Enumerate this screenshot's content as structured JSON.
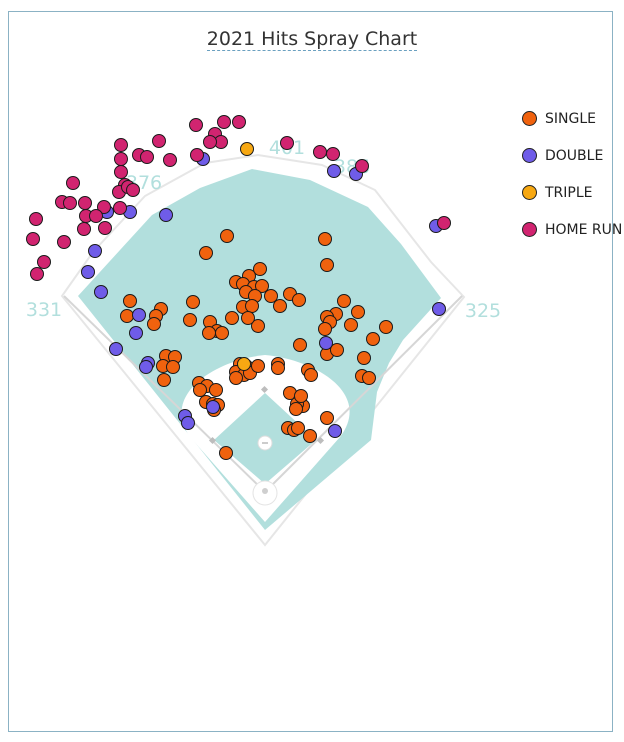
{
  "chart_data": {
    "type": "scatter",
    "title": "2021 Hits Spray Chart",
    "field_distances": {
      "left": "331",
      "left_center": "376",
      "center": "401",
      "right_center": "386",
      "right": "325"
    },
    "legend_placement": "top-right",
    "grid": false,
    "series": [
      {
        "name": "SINGLE",
        "color": "#f0620e",
        "points": [
          [
            227,
            236
          ],
          [
            206,
            253
          ],
          [
            325,
            239
          ],
          [
            327,
            265
          ],
          [
            260,
            269
          ],
          [
            249,
            276
          ],
          [
            236,
            282
          ],
          [
            243,
            284
          ],
          [
            254,
            287
          ],
          [
            262,
            286
          ],
          [
            246,
            292
          ],
          [
            255,
            296
          ],
          [
            271,
            296
          ],
          [
            290,
            294
          ],
          [
            299,
            300
          ],
          [
            280,
            306
          ],
          [
            243,
            307
          ],
          [
            252,
            306
          ],
          [
            193,
            302
          ],
          [
            130,
            301
          ],
          [
            161,
            309
          ],
          [
            156,
            316
          ],
          [
            154,
            324
          ],
          [
            127,
            316
          ],
          [
            190,
            320
          ],
          [
            210,
            322
          ],
          [
            217,
            331
          ],
          [
            222,
            333
          ],
          [
            209,
            333
          ],
          [
            258,
            326
          ],
          [
            232,
            318
          ],
          [
            248,
            318
          ],
          [
            344,
            301
          ],
          [
            358,
            312
          ],
          [
            336,
            314
          ],
          [
            327,
            317
          ],
          [
            330,
            322
          ],
          [
            351,
            325
          ],
          [
            325,
            329
          ],
          [
            386,
            327
          ],
          [
            373,
            339
          ],
          [
            300,
            345
          ],
          [
            327,
            354
          ],
          [
            337,
            350
          ],
          [
            364,
            358
          ],
          [
            362,
            376
          ],
          [
            369,
            378
          ],
          [
            166,
            356
          ],
          [
            175,
            357
          ],
          [
            163,
            366
          ],
          [
            173,
            367
          ],
          [
            164,
            380
          ],
          [
            199,
            383
          ],
          [
            207,
            386
          ],
          [
            200,
            390
          ],
          [
            216,
            390
          ],
          [
            240,
            364
          ],
          [
            246,
            366
          ],
          [
            236,
            372
          ],
          [
            244,
            375
          ],
          [
            250,
            373
          ],
          [
            236,
            378
          ],
          [
            258,
            366
          ],
          [
            278,
            364
          ],
          [
            278,
            368
          ],
          [
            308,
            370
          ],
          [
            311,
            375
          ],
          [
            206,
            402
          ],
          [
            213,
            404
          ],
          [
            218,
            405
          ],
          [
            214,
            410
          ],
          [
            290,
            393
          ],
          [
            300,
            400
          ],
          [
            303,
            406
          ],
          [
            297,
            404
          ],
          [
            296,
            409
          ],
          [
            301,
            396
          ],
          [
            288,
            428
          ],
          [
            294,
            430
          ],
          [
            298,
            428
          ],
          [
            310,
            436
          ],
          [
            327,
            418
          ],
          [
            226,
            453
          ]
        ]
      },
      {
        "name": "DOUBLE",
        "color": "#6f5ce8",
        "points": [
          [
            203,
            159
          ],
          [
            334,
            171
          ],
          [
            356,
            174
          ],
          [
            166,
            215
          ],
          [
            130,
            212
          ],
          [
            107,
            212
          ],
          [
            95,
            251
          ],
          [
            88,
            272
          ],
          [
            101,
            292
          ],
          [
            139,
            315
          ],
          [
            136,
            333
          ],
          [
            148,
            363
          ],
          [
            146,
            367
          ],
          [
            116,
            349
          ],
          [
            185,
            416
          ],
          [
            188,
            423
          ],
          [
            213,
            407
          ],
          [
            335,
            431
          ],
          [
            326,
            343
          ],
          [
            439,
            309
          ],
          [
            436,
            226
          ]
        ]
      },
      {
        "name": "TRIPLE",
        "color": "#f7a812",
        "points": [
          [
            247,
            149
          ],
          [
            244,
            364
          ]
        ]
      },
      {
        "name": "HOME RUN",
        "color": "#d12470",
        "points": [
          [
            224,
            122
          ],
          [
            239,
            122
          ],
          [
            196,
            125
          ],
          [
            159,
            141
          ],
          [
            215,
            134
          ],
          [
            221,
            142
          ],
          [
            210,
            142
          ],
          [
            287,
            143
          ],
          [
            121,
            145
          ],
          [
            139,
            155
          ],
          [
            147,
            157
          ],
          [
            170,
            160
          ],
          [
            197,
            155
          ],
          [
            320,
            152
          ],
          [
            333,
            154
          ],
          [
            362,
            166
          ],
          [
            121,
            159
          ],
          [
            121,
            172
          ],
          [
            125,
            185
          ],
          [
            119,
            192
          ],
          [
            128,
            187
          ],
          [
            133,
            190
          ],
          [
            73,
            183
          ],
          [
            62,
            202
          ],
          [
            70,
            203
          ],
          [
            85,
            203
          ],
          [
            104,
            207
          ],
          [
            120,
            208
          ],
          [
            36,
            219
          ],
          [
            86,
            216
          ],
          [
            96,
            216
          ],
          [
            105,
            228
          ],
          [
            84,
            229
          ],
          [
            33,
            239
          ],
          [
            64,
            242
          ],
          [
            44,
            262
          ],
          [
            37,
            274
          ],
          [
            444,
            223
          ]
        ]
      }
    ]
  }
}
